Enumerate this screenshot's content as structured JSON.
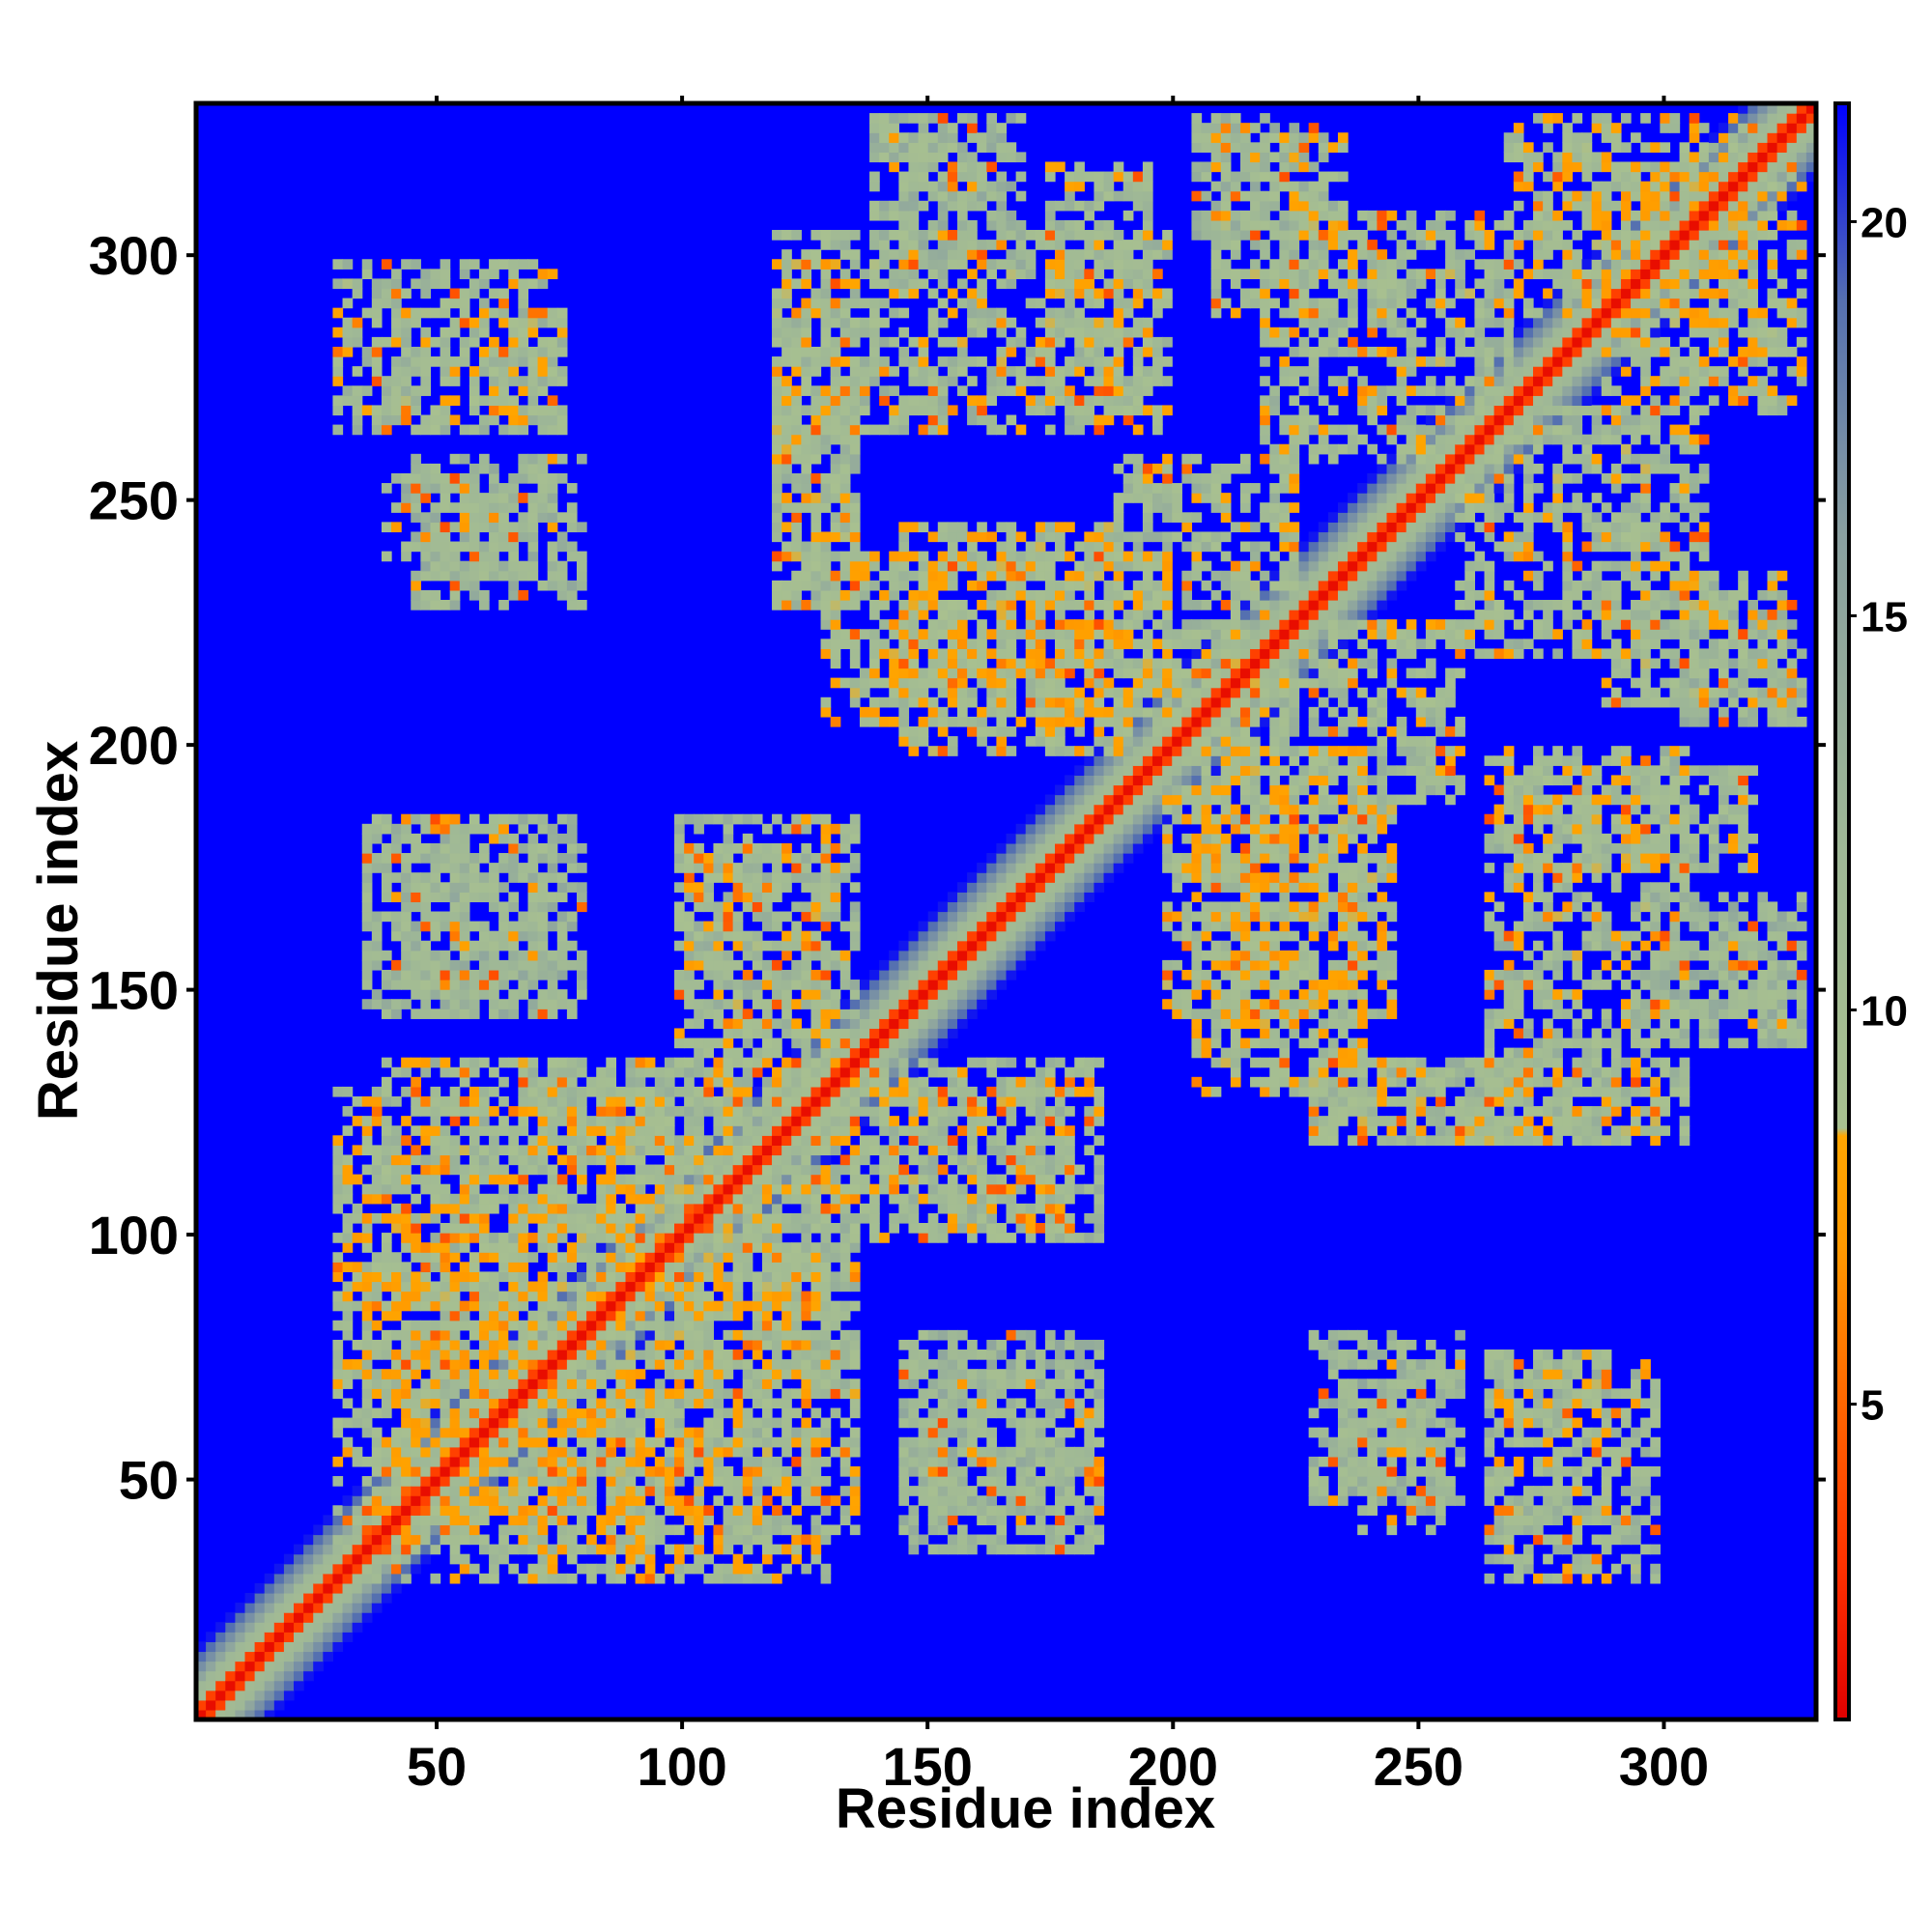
{
  "chart_data": {
    "type": "heatmap",
    "title": "",
    "xlabel": "Residue index",
    "ylabel": "Residue index",
    "xlim": [
      1,
      331
    ],
    "ylim": [
      1,
      331
    ],
    "x_ticks": [
      50,
      100,
      150,
      200,
      250,
      300
    ],
    "y_ticks": [
      50,
      100,
      150,
      200,
      250,
      300
    ],
    "colorbar": {
      "range": [
        1,
        21.5
      ],
      "ticks": [
        5,
        10,
        15,
        20
      ],
      "stops": [
        {
          "value": 1,
          "color": "#e00000"
        },
        {
          "value": 3,
          "color": "#ff3300"
        },
        {
          "value": 5,
          "color": "#ff6600"
        },
        {
          "value": 7,
          "color": "#ff9900"
        },
        {
          "value": 8.4,
          "color": "#ffa500"
        },
        {
          "value": 8.5,
          "color": "#a8c090"
        },
        {
          "value": 12,
          "color": "#9fb896"
        },
        {
          "value": 16,
          "color": "#8aa0a0"
        },
        {
          "value": 19,
          "color": "#5570b0"
        },
        {
          "value": 21.5,
          "color": "#0000ff"
        }
      ]
    },
    "background_value": 21.5,
    "diagonal": {
      "core_value": 1.5,
      "band_width_residues": 6
    },
    "contact_regions": [
      {
        "x": [
          30,
          95
        ],
        "y": [
          35,
          130
        ],
        "value": 10
      },
      {
        "x": [
          95,
          135
        ],
        "y": [
          40,
          130
        ],
        "value": 11
      },
      {
        "x": [
          38,
          75
        ],
        "y": [
          265,
          290
        ],
        "value": 11
      },
      {
        "x": [
          40,
          70
        ],
        "y": [
          235,
          255
        ],
        "value": 12
      },
      {
        "x": [
          35,
          75
        ],
        "y": [
          145,
          185
        ],
        "value": 12
      },
      {
        "x": [
          100,
          135
        ],
        "y": [
          130,
          185
        ],
        "value": 11
      },
      {
        "x": [
          120,
          135
        ],
        "y": [
          230,
          300
        ],
        "value": 11
      },
      {
        "x": [
          140,
          170
        ],
        "y": [
          300,
          330
        ],
        "value": 12
      },
      {
        "x": [
          145,
          190
        ],
        "y": [
          200,
          245
        ],
        "value": 10
      },
      {
        "x": [
          175,
          195
        ],
        "y": [
          270,
          320
        ],
        "value": 11
      },
      {
        "x": [
          145,
          185
        ],
        "y": [
          40,
          80
        ],
        "value": 12
      },
      {
        "x": [
          140,
          180
        ],
        "y": [
          100,
          130
        ],
        "value": 11
      },
      {
        "x": [
          190,
          225
        ],
        "y": [
          200,
          260
        ],
        "value": 11
      },
      {
        "x": [
          205,
          240
        ],
        "y": [
          130,
          200
        ],
        "value": 10
      },
      {
        "x": [
          210,
          235
        ],
        "y": [
          290,
          325
        ],
        "value": 11
      },
      {
        "x": [
          230,
          270
        ],
        "y": [
          120,
          135
        ],
        "value": 11
      },
      {
        "x": [
          230,
          260
        ],
        "y": [
          45,
          80
        ],
        "value": 12
      },
      {
        "x": [
          265,
          300
        ],
        "y": [
          30,
          75
        ],
        "value": 11
      },
      {
        "x": [
          265,
          305
        ],
        "y": [
          120,
          200
        ],
        "value": 11
      },
      {
        "x": [
          260,
          310
        ],
        "y": [
          220,
          270
        ],
        "value": 11
      },
      {
        "x": [
          290,
          330
        ],
        "y": [
          270,
          320
        ],
        "value": 10
      },
      {
        "x": [
          310,
          330
        ],
        "y": [
          140,
          165
        ],
        "value": 12
      },
      {
        "x": [
          305,
          330
        ],
        "y": [
          205,
          230
        ],
        "value": 12
      }
    ],
    "grid": false,
    "legend": "colorbar-right"
  }
}
